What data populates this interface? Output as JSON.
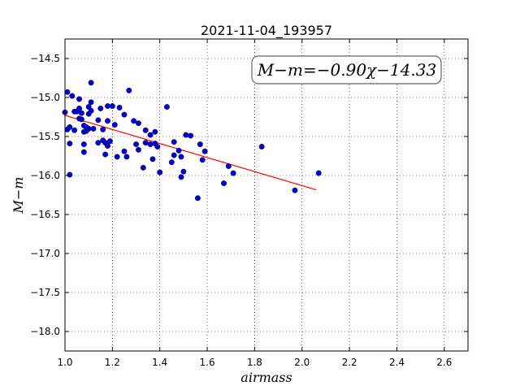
{
  "chart_data": {
    "type": "scatter",
    "title": "2021-11-04_193957",
    "xlabel": "airmass",
    "ylabel": "M−m",
    "xlim": [
      1.0,
      2.7
    ],
    "ylim": [
      -18.25,
      -14.25
    ],
    "y_inverted": true,
    "grid": true,
    "x_ticks": [
      "1.0",
      "1.2",
      "1.4",
      "1.6",
      "1.8",
      "2.0",
      "2.2",
      "2.4",
      "2.6"
    ],
    "y_ticks": [
      "−14.5",
      "−15.0",
      "−15.5",
      "−16.0",
      "−16.5",
      "−17.0",
      "−17.5",
      "−18.0"
    ],
    "annotation": "M−m=−0.90χ−14.33",
    "fit": {
      "slope": -0.9,
      "intercept": -14.33,
      "x_range": [
        1.0,
        2.06
      ],
      "color": "#ff0000"
    },
    "point_color": "#0000cc",
    "points": [
      [
        1.0,
        -15.19
      ],
      [
        1.01,
        -14.93
      ],
      [
        1.01,
        -15.41
      ],
      [
        1.02,
        -15.38
      ],
      [
        1.02,
        -15.99
      ],
      [
        1.02,
        -15.59
      ],
      [
        1.03,
        -14.98
      ],
      [
        1.04,
        -15.18
      ],
      [
        1.04,
        -15.42
      ],
      [
        1.05,
        -15.18
      ],
      [
        1.06,
        -15.02
      ],
      [
        1.06,
        -15.14
      ],
      [
        1.06,
        -15.27
      ],
      [
        1.07,
        -15.2
      ],
      [
        1.07,
        -15.28
      ],
      [
        1.08,
        -15.36
      ],
      [
        1.08,
        -15.7
      ],
      [
        1.08,
        -15.6
      ],
      [
        1.08,
        -15.44
      ],
      [
        1.09,
        -15.38
      ],
      [
        1.09,
        -15.43
      ],
      [
        1.1,
        -15.12
      ],
      [
        1.1,
        -15.21
      ],
      [
        1.1,
        -15.4
      ],
      [
        1.11,
        -15.06
      ],
      [
        1.11,
        -15.17
      ],
      [
        1.11,
        -14.81
      ],
      [
        1.12,
        -15.4
      ],
      [
        1.14,
        -15.29
      ],
      [
        1.14,
        -15.58
      ],
      [
        1.15,
        -15.14
      ],
      [
        1.16,
        -15.41
      ],
      [
        1.16,
        -15.55
      ],
      [
        1.17,
        -15.58
      ],
      [
        1.17,
        -15.73
      ],
      [
        1.18,
        -15.11
      ],
      [
        1.18,
        -15.3
      ],
      [
        1.18,
        -15.62
      ],
      [
        1.19,
        -15.56
      ],
      [
        1.2,
        -15.11
      ],
      [
        1.21,
        -15.35
      ],
      [
        1.22,
        -15.76
      ],
      [
        1.23,
        -15.13
      ],
      [
        1.25,
        -15.69
      ],
      [
        1.25,
        -15.22
      ],
      [
        1.26,
        -15.76
      ],
      [
        1.27,
        -14.91
      ],
      [
        1.29,
        -15.3
      ],
      [
        1.3,
        -15.6
      ],
      [
        1.31,
        -15.33
      ],
      [
        1.31,
        -15.67
      ],
      [
        1.33,
        -15.9
      ],
      [
        1.34,
        -15.42
      ],
      [
        1.34,
        -15.58
      ],
      [
        1.36,
        -15.6
      ],
      [
        1.36,
        -15.48
      ],
      [
        1.37,
        -15.79
      ],
      [
        1.38,
        -15.44
      ],
      [
        1.38,
        -15.59
      ],
      [
        1.39,
        -15.63
      ],
      [
        1.4,
        -15.96
      ],
      [
        1.43,
        -15.12
      ],
      [
        1.45,
        -15.83
      ],
      [
        1.46,
        -15.57
      ],
      [
        1.46,
        -15.74
      ],
      [
        1.48,
        -15.68
      ],
      [
        1.49,
        -15.76
      ],
      [
        1.49,
        -16.02
      ],
      [
        1.5,
        -15.95
      ],
      [
        1.51,
        -15.48
      ],
      [
        1.53,
        -15.49
      ],
      [
        1.56,
        -16.29
      ],
      [
        1.57,
        -15.6
      ],
      [
        1.58,
        -15.8
      ],
      [
        1.59,
        -15.69
      ],
      [
        1.67,
        -16.1
      ],
      [
        1.69,
        -15.88
      ],
      [
        1.71,
        -15.97
      ],
      [
        1.83,
        -15.63
      ],
      [
        1.97,
        -16.19
      ],
      [
        2.07,
        -15.97
      ]
    ]
  }
}
